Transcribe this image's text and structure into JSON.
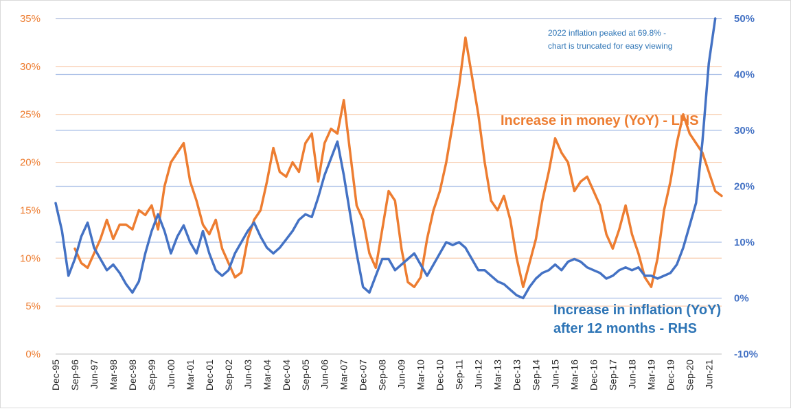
{
  "colors": {
    "money": "#ed7d31",
    "inflation": "#4472c4",
    "grid_left": "#f8cbad",
    "grid_right": "#a9bfe6",
    "axis": "#bfbfbf"
  },
  "chart_data": {
    "type": "line",
    "x_tick_labels": [
      "Dec-95",
      "Sep-96",
      "Jun-97",
      "Mar-98",
      "Dec-98",
      "Sep-99",
      "Jun-00",
      "Mar-01",
      "Dec-01",
      "Sep-02",
      "Jun-03",
      "Mar-04",
      "Dec-04",
      "Sep-05",
      "Jun-06",
      "Mar-07",
      "Dec-07",
      "Sep-08",
      "Jun-09",
      "Mar-10",
      "Dec-10",
      "Sep-11",
      "Jun-12",
      "Mar-13",
      "Dec-13",
      "Sep-14",
      "Jun-15",
      "Mar-16",
      "Dec-16",
      "Sep-17",
      "Jun-18",
      "Mar-19",
      "Dec-19",
      "Sep-20",
      "Jun-21"
    ],
    "x_range": [
      "1995-12",
      "2021-12"
    ],
    "y_left": {
      "min": 0,
      "max": 35,
      "step": 5,
      "tick_labels": [
        "0%",
        "5%",
        "10%",
        "15%",
        "20%",
        "25%",
        "30%",
        "35%"
      ]
    },
    "y_right": {
      "min": -10,
      "max": 50,
      "step": 10,
      "tick_labels": [
        "-10%",
        "0%",
        "10%",
        "20%",
        "30%",
        "40%",
        "50%"
      ]
    },
    "grid": true,
    "annotations": [
      {
        "id": "money_label",
        "text": "Increase in money (YoY) - LHS"
      },
      {
        "id": "inflation_label_1",
        "text": "Increase in inflation (YoY)"
      },
      {
        "id": "inflation_label_2",
        "text": "after 12 months - RHS"
      },
      {
        "id": "note_1",
        "text": "2022  inflation peaked at 69.8% -"
      },
      {
        "id": "note_2",
        "text": "chart is truncated for easy viewing"
      }
    ],
    "series": [
      {
        "name": "Increase in money (YoY) - LHS",
        "axis": "left",
        "points": [
          [
            "1996-09",
            11.0
          ],
          [
            "1996-12",
            9.5
          ],
          [
            "1997-03",
            9.0
          ],
          [
            "1997-06",
            10.5
          ],
          [
            "1997-09",
            12.0
          ],
          [
            "1997-12",
            14.0
          ],
          [
            "1998-03",
            12.0
          ],
          [
            "1998-06",
            13.5
          ],
          [
            "1998-09",
            13.5
          ],
          [
            "1998-12",
            13.0
          ],
          [
            "1999-03",
            15.0
          ],
          [
            "1999-06",
            14.5
          ],
          [
            "1999-09",
            15.5
          ],
          [
            "1999-12",
            13.0
          ],
          [
            "2000-03",
            17.5
          ],
          [
            "2000-06",
            20.0
          ],
          [
            "2000-09",
            21.0
          ],
          [
            "2000-12",
            22.0
          ],
          [
            "2001-03",
            18.0
          ],
          [
            "2001-06",
            16.0
          ],
          [
            "2001-09",
            13.5
          ],
          [
            "2001-12",
            12.5
          ],
          [
            "2002-03",
            14.0
          ],
          [
            "2002-06",
            11.0
          ],
          [
            "2002-09",
            9.5
          ],
          [
            "2002-12",
            8.0
          ],
          [
            "2003-03",
            8.5
          ],
          [
            "2003-06",
            12.0
          ],
          [
            "2003-09",
            14.0
          ],
          [
            "2003-12",
            15.0
          ],
          [
            "2004-03",
            18.0
          ],
          [
            "2004-06",
            21.5
          ],
          [
            "2004-09",
            19.0
          ],
          [
            "2004-12",
            18.5
          ],
          [
            "2005-03",
            20.0
          ],
          [
            "2005-06",
            19.0
          ],
          [
            "2005-09",
            22.0
          ],
          [
            "2005-12",
            23.0
          ],
          [
            "2006-03",
            18.0
          ],
          [
            "2006-06",
            22.0
          ],
          [
            "2006-09",
            23.5
          ],
          [
            "2006-12",
            23.0
          ],
          [
            "2007-03",
            26.5
          ],
          [
            "2007-06",
            21.0
          ],
          [
            "2007-09",
            15.5
          ],
          [
            "2007-12",
            14.0
          ],
          [
            "2008-03",
            10.5
          ],
          [
            "2008-06",
            9.0
          ],
          [
            "2008-09",
            13.0
          ],
          [
            "2008-12",
            17.0
          ],
          [
            "2009-03",
            16.0
          ],
          [
            "2009-06",
            11.0
          ],
          [
            "2009-09",
            7.5
          ],
          [
            "2009-12",
            7.0
          ],
          [
            "2010-03",
            8.0
          ],
          [
            "2010-06",
            12.0
          ],
          [
            "2010-09",
            15.0
          ],
          [
            "2010-12",
            17.0
          ],
          [
            "2011-03",
            20.0
          ],
          [
            "2011-06",
            24.0
          ],
          [
            "2011-09",
            28.0
          ],
          [
            "2011-12",
            33.0
          ],
          [
            "2012-03",
            29.0
          ],
          [
            "2012-06",
            25.0
          ],
          [
            "2012-09",
            20.0
          ],
          [
            "2012-12",
            16.0
          ],
          [
            "2013-03",
            15.0
          ],
          [
            "2013-06",
            16.5
          ],
          [
            "2013-09",
            14.0
          ],
          [
            "2013-12",
            10.0
          ],
          [
            "2014-03",
            7.0
          ],
          [
            "2014-06",
            9.5
          ],
          [
            "2014-09",
            12.0
          ],
          [
            "2014-12",
            16.0
          ],
          [
            "2015-03",
            19.0
          ],
          [
            "2015-06",
            22.5
          ],
          [
            "2015-09",
            21.0
          ],
          [
            "2015-12",
            20.0
          ],
          [
            "2016-03",
            17.0
          ],
          [
            "2016-06",
            18.0
          ],
          [
            "2016-09",
            18.5
          ],
          [
            "2016-12",
            17.0
          ],
          [
            "2017-03",
            15.5
          ],
          [
            "2017-06",
            12.5
          ],
          [
            "2017-09",
            11.0
          ],
          [
            "2017-12",
            13.0
          ],
          [
            "2018-03",
            15.5
          ],
          [
            "2018-06",
            12.5
          ],
          [
            "2018-09",
            10.5
          ],
          [
            "2018-12",
            8.0
          ],
          [
            "2019-03",
            7.0
          ],
          [
            "2019-06",
            10.0
          ],
          [
            "2019-09",
            15.0
          ],
          [
            "2019-12",
            18.0
          ],
          [
            "2020-03",
            22.0
          ],
          [
            "2020-06",
            25.0
          ],
          [
            "2020-09",
            23.0
          ],
          [
            "2020-12",
            22.0
          ],
          [
            "2021-03",
            21.0
          ],
          [
            "2021-06",
            19.0
          ],
          [
            "2021-09",
            17.0
          ],
          [
            "2021-12",
            16.5
          ]
        ]
      },
      {
        "name": "Increase in inflation (YoY) after 12 months - RHS",
        "axis": "right",
        "points": [
          [
            "1995-12",
            17.0
          ],
          [
            "1996-03",
            12.0
          ],
          [
            "1996-06",
            4.0
          ],
          [
            "1996-09",
            7.0
          ],
          [
            "1996-12",
            11.0
          ],
          [
            "1997-03",
            13.5
          ],
          [
            "1997-06",
            9.0
          ],
          [
            "1997-09",
            7.0
          ],
          [
            "1997-12",
            5.0
          ],
          [
            "1998-03",
            6.0
          ],
          [
            "1998-06",
            4.5
          ],
          [
            "1998-09",
            2.5
          ],
          [
            "1998-12",
            1.0
          ],
          [
            "1999-03",
            3.0
          ],
          [
            "1999-06",
            8.0
          ],
          [
            "1999-09",
            12.0
          ],
          [
            "1999-12",
            15.0
          ],
          [
            "2000-03",
            12.0
          ],
          [
            "2000-06",
            8.0
          ],
          [
            "2000-09",
            11.0
          ],
          [
            "2000-12",
            13.0
          ],
          [
            "2001-03",
            10.0
          ],
          [
            "2001-06",
            8.0
          ],
          [
            "2001-09",
            12.0
          ],
          [
            "2001-12",
            8.0
          ],
          [
            "2002-03",
            5.0
          ],
          [
            "2002-06",
            4.0
          ],
          [
            "2002-09",
            5.0
          ],
          [
            "2002-12",
            8.0
          ],
          [
            "2003-03",
            10.0
          ],
          [
            "2003-06",
            12.0
          ],
          [
            "2003-09",
            13.5
          ],
          [
            "2003-12",
            11.0
          ],
          [
            "2004-03",
            9.0
          ],
          [
            "2004-06",
            8.0
          ],
          [
            "2004-09",
            9.0
          ],
          [
            "2004-12",
            10.5
          ],
          [
            "2005-03",
            12.0
          ],
          [
            "2005-06",
            14.0
          ],
          [
            "2005-09",
            15.0
          ],
          [
            "2005-12",
            14.5
          ],
          [
            "2006-03",
            18.0
          ],
          [
            "2006-06",
            22.0
          ],
          [
            "2006-09",
            25.0
          ],
          [
            "2006-12",
            28.0
          ],
          [
            "2007-03",
            22.0
          ],
          [
            "2007-06",
            15.0
          ],
          [
            "2007-09",
            8.0
          ],
          [
            "2007-12",
            2.0
          ],
          [
            "2008-03",
            1.0
          ],
          [
            "2008-06",
            4.0
          ],
          [
            "2008-09",
            7.0
          ],
          [
            "2008-12",
            7.0
          ],
          [
            "2009-03",
            5.0
          ],
          [
            "2009-06",
            6.0
          ],
          [
            "2009-09",
            7.0
          ],
          [
            "2009-12",
            8.0
          ],
          [
            "2010-03",
            6.0
          ],
          [
            "2010-06",
            4.0
          ],
          [
            "2010-09",
            6.0
          ],
          [
            "2010-12",
            8.0
          ],
          [
            "2011-03",
            10.0
          ],
          [
            "2011-06",
            9.5
          ],
          [
            "2011-09",
            10.0
          ],
          [
            "2011-12",
            9.0
          ],
          [
            "2012-03",
            7.0
          ],
          [
            "2012-06",
            5.0
          ],
          [
            "2012-09",
            5.0
          ],
          [
            "2012-12",
            4.0
          ],
          [
            "2013-03",
            3.0
          ],
          [
            "2013-06",
            2.5
          ],
          [
            "2013-09",
            1.5
          ],
          [
            "2013-12",
            0.5
          ],
          [
            "2014-03",
            0.0
          ],
          [
            "2014-06",
            2.0
          ],
          [
            "2014-09",
            3.5
          ],
          [
            "2014-12",
            4.5
          ],
          [
            "2015-03",
            5.0
          ],
          [
            "2015-06",
            6.0
          ],
          [
            "2015-09",
            5.0
          ],
          [
            "2015-12",
            6.5
          ],
          [
            "2016-03",
            7.0
          ],
          [
            "2016-06",
            6.5
          ],
          [
            "2016-09",
            5.5
          ],
          [
            "2016-12",
            5.0
          ],
          [
            "2017-03",
            4.5
          ],
          [
            "2017-06",
            3.5
          ],
          [
            "2017-09",
            4.0
          ],
          [
            "2017-12",
            5.0
          ],
          [
            "2018-03",
            5.5
          ],
          [
            "2018-06",
            5.0
          ],
          [
            "2018-09",
            5.5
          ],
          [
            "2018-12",
            4.0
          ],
          [
            "2019-03",
            4.0
          ],
          [
            "2019-06",
            3.5
          ],
          [
            "2019-09",
            4.0
          ],
          [
            "2019-12",
            4.5
          ],
          [
            "2020-03",
            6.0
          ],
          [
            "2020-06",
            9.0
          ],
          [
            "2020-09",
            13.0
          ],
          [
            "2020-12",
            17.0
          ],
          [
            "2021-03",
            28.0
          ],
          [
            "2021-06",
            42.0
          ],
          [
            "2021-09",
            50.0
          ]
        ]
      }
    ]
  }
}
